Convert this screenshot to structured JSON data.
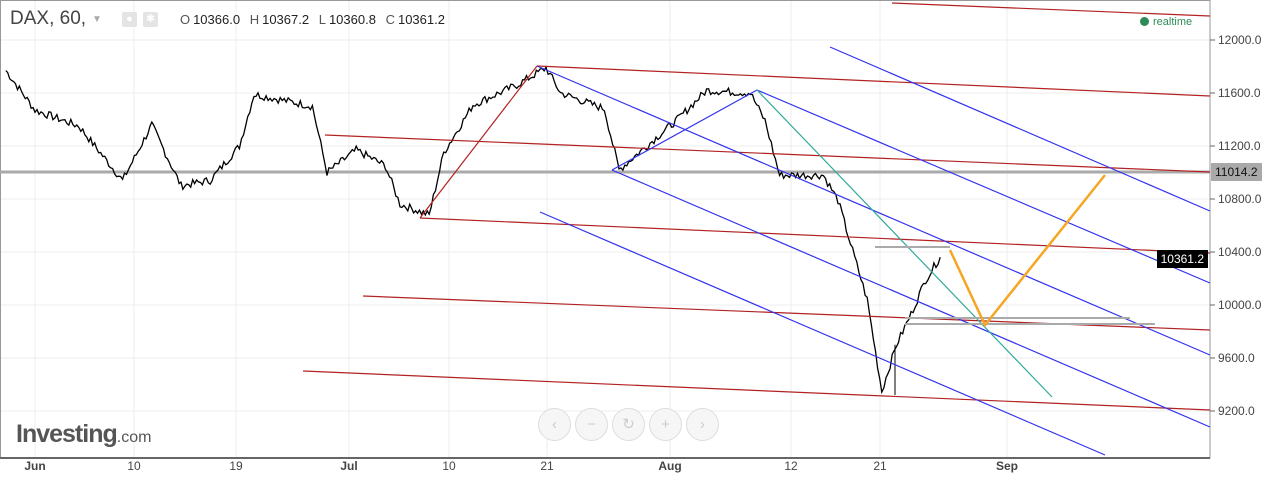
{
  "header": {
    "symbol": "DAX, 60,",
    "O_label": "O",
    "O": "10366.0",
    "H_label": "H",
    "H": "10367.2",
    "L_label": "L",
    "L": "10360.8",
    "C_label": "C",
    "C": "10361.2"
  },
  "realtime": "realtime",
  "logo": {
    "main": "Investing",
    "suffix": ".com"
  },
  "nav": {
    "left": "‹",
    "minus": "−",
    "reset": "↻",
    "plus": "+",
    "right": "›"
  },
  "chart_data": {
    "type": "line",
    "title": "DAX, 60,",
    "y_ticks": [
      "12000.0",
      "11600.0",
      "11200.0",
      "10800.0",
      "10400.0",
      "10000.0",
      "9600.0",
      "9200.0"
    ],
    "ylim": [
      8850,
      12300
    ],
    "x_ticks": [
      "Jun",
      "10",
      "19",
      "Jul",
      "10",
      "21",
      "Aug",
      "12",
      "21",
      "Sep"
    ],
    "grid": true,
    "price_tags": {
      "horizontal_line": "11014.2",
      "last": "10361.2"
    },
    "colors": {
      "price": "#000000",
      "channel_red": "#b22222",
      "channel_blue": "#3333ee",
      "trend_teal": "#33aa99",
      "projection": "#f5a623",
      "level": "#aaaaaa"
    },
    "series": [
      {
        "values": [
          [
            "2015-05-28",
            11770
          ],
          [
            "2015-06-01",
            11470
          ],
          [
            "2015-06-04",
            11350
          ],
          [
            "2015-06-09",
            10940
          ],
          [
            "2015-06-11",
            11360
          ],
          [
            "2015-06-15",
            10900
          ],
          [
            "2015-06-17",
            10940
          ],
          [
            "2015-06-19",
            11200
          ],
          [
            "2015-06-22",
            11590
          ],
          [
            "2015-06-26",
            11500
          ],
          [
            "2015-06-29",
            11000
          ],
          [
            "2015-07-01",
            11170
          ],
          [
            "2015-07-03",
            11050
          ],
          [
            "2015-07-06",
            10760
          ],
          [
            "2015-07-08",
            10680
          ],
          [
            "2015-07-09",
            11150
          ],
          [
            "2015-07-13",
            11510
          ],
          [
            "2015-07-16",
            11660
          ],
          [
            "2015-07-20",
            11790
          ],
          [
            "2015-07-21",
            11600
          ],
          [
            "2015-07-24",
            11480
          ],
          [
            "2015-07-27",
            11020
          ],
          [
            "2015-07-29",
            11210
          ],
          [
            "2015-07-31",
            11400
          ],
          [
            "2015-08-04",
            11620
          ],
          [
            "2015-08-07",
            11600
          ],
          [
            "2015-08-10",
            11390
          ],
          [
            "2015-08-11",
            10980
          ],
          [
            "2015-08-14",
            10980
          ],
          [
            "2015-08-17",
            10790
          ],
          [
            "2015-08-18",
            10410
          ],
          [
            "2015-08-19",
            10040
          ],
          [
            "2015-08-20",
            9350
          ],
          [
            "2015-08-21",
            9700
          ],
          [
            "2015-08-24",
            9930
          ],
          [
            "2015-08-25",
            10190
          ],
          [
            "2015-08-26",
            10361.2
          ]
        ]
      }
    ]
  }
}
